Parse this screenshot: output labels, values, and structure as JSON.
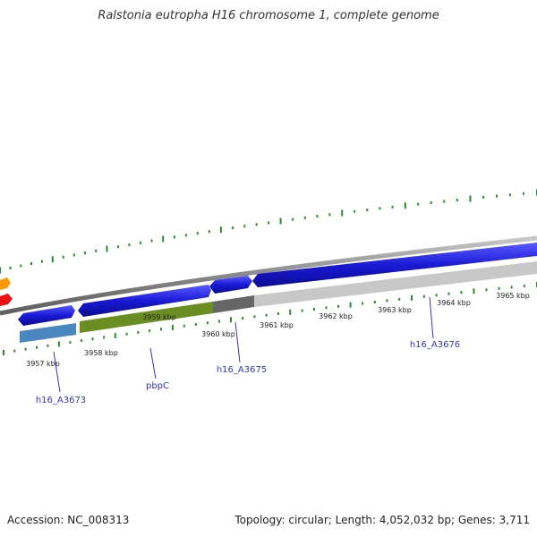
{
  "title": "Ralstonia eutropha H16 chromosome 1, complete genome",
  "footer": {
    "accession": "Accession: NC_008313",
    "summary": "Topology: circular; Length: 4,052,032 bp; Genes: 3,711"
  },
  "scale": {
    "labels": [
      "3957 kbp",
      "3958 kbp",
      "3959 kbp",
      "3960 kbp",
      "3961 kbp",
      "3962 kbp",
      "3963 kbp",
      "3964 kbp",
      "3965 kbp"
    ]
  },
  "genes": [
    {
      "name": "h16_A3673",
      "color": "#3333cc"
    },
    {
      "name": "pbpC",
      "color": "#3333cc"
    },
    {
      "name": "h16_A3675",
      "color": "#3333cc"
    },
    {
      "name": "h16_A3676",
      "color": "#3333cc"
    }
  ],
  "colors": {
    "backbone": "#888888",
    "forward_cds": "#1a1ad6",
    "reverse_cds_a": "#4a86c0",
    "reverse_cds_b": "#6b8e23",
    "reverse_cds_c": "#666666",
    "reverse_cds_d": "#c8c8c8",
    "ticks": "#2e8b2e",
    "orange": "#ff9900",
    "red": "#ee1111"
  }
}
